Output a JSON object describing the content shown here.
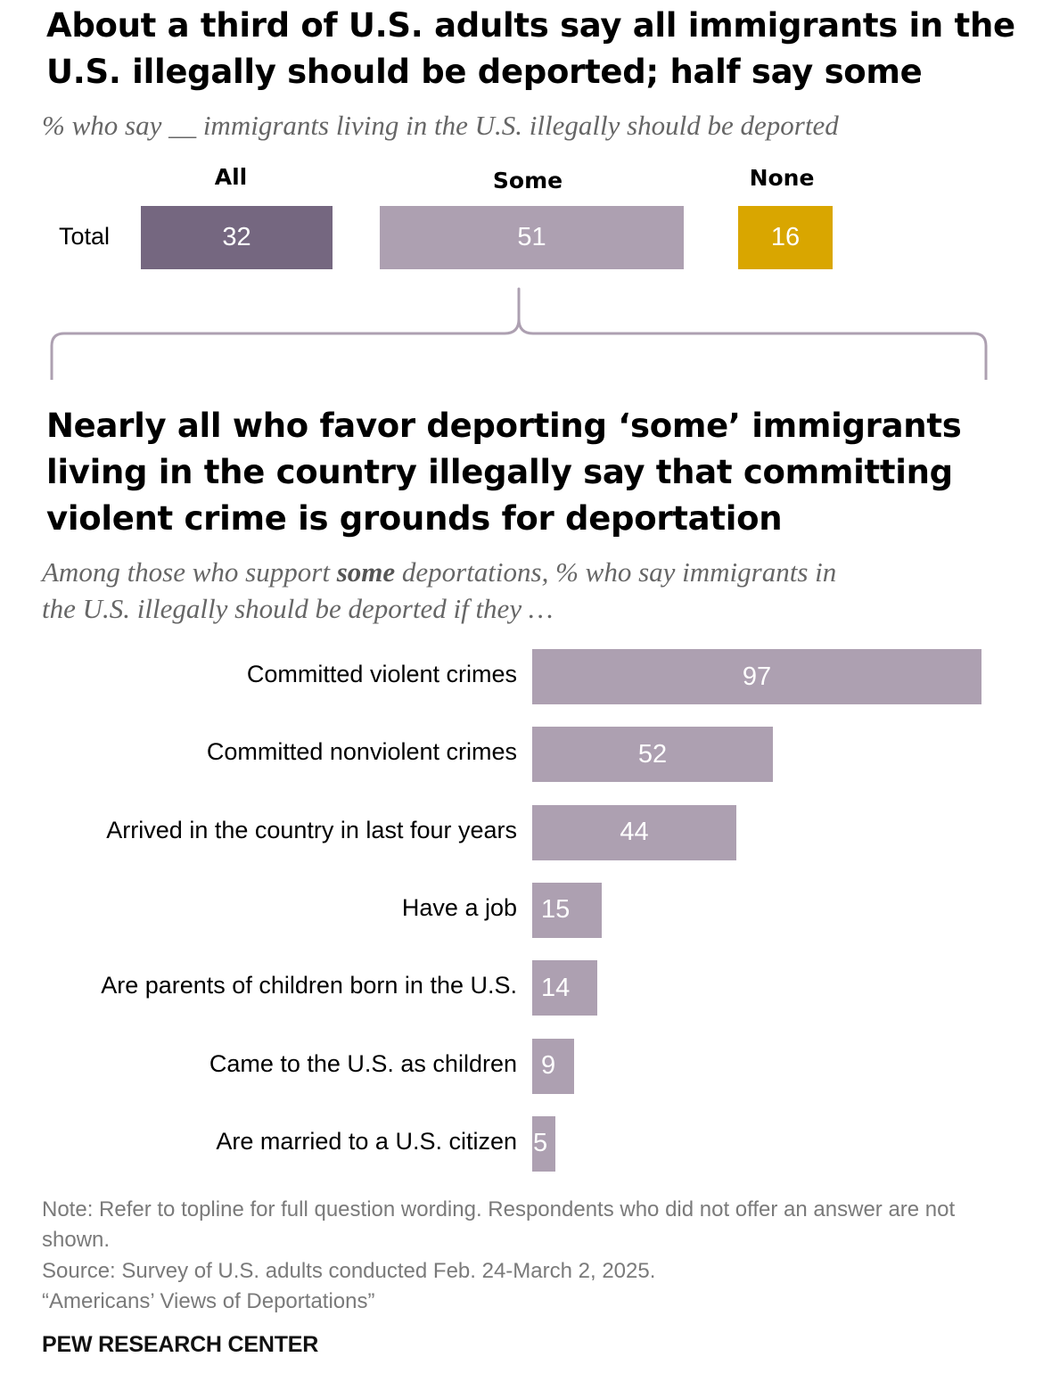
{
  "title": "About a third of U.S. adults say all immigrants in the U.S. illegally should be deported; half say some",
  "title_lines": [
    "About a third of U.S. adults say all immigrants in the",
    "U.S. illegally should be deported; half say some"
  ],
  "subtitle": "% who say __ immigrants living in the U.S. illegally should be deported",
  "colors": {
    "all": "#756780",
    "some": "#ada0b1",
    "none": "#d9a600",
    "bracket": "#ada0b1"
  },
  "chart_data": [
    {
      "type": "bar",
      "orientation": "horizontal-stacked-columns",
      "title": "About a third of U.S. adults say all immigrants in the U.S. illegally should be deported; half say some",
      "subtitle": "% who say __ immigrants living in the U.S. illegally should be deported",
      "row_label": "Total",
      "categories": [
        "All",
        "Some",
        "None"
      ],
      "values": [
        32,
        51,
        16
      ]
    },
    {
      "type": "bar",
      "orientation": "horizontal",
      "title": "Nearly all who favor deporting ‘some’ immigrants living in the country illegally say that committing violent crime is grounds for deportation",
      "subtitle": "Among those who support some deportations, % who say immigrants in the U.S. illegally should be deported if they …",
      "categories": [
        "Committed violent crimes",
        "Committed nonviolent crimes",
        "Arrived in the country in last four years",
        "Have a job",
        "Are parents of children born in the U.S.",
        "Came to the U.S. as children",
        "Are married to a U.S. citizen"
      ],
      "values": [
        97,
        52,
        44,
        15,
        14,
        9,
        5
      ],
      "xlim": [
        0,
        100
      ]
    }
  ],
  "top_chart": {
    "row_label": "Total",
    "headers": [
      "All",
      "Some",
      "None"
    ],
    "values": [
      "32",
      "51",
      "16"
    ]
  },
  "second_title_lines": [
    "Nearly all who favor deporting ‘some’ immigrants",
    "living in the country illegally say that committing",
    "violent crime is grounds for deportation"
  ],
  "second_subtitle": {
    "line1_pre": "Among those who support ",
    "line1_bold": "some",
    "line1_post": " deportations, % who say immigrants in",
    "line2": "the U.S. illegally should be deported if they …"
  },
  "notes": {
    "note": "Note: Refer to topline for full question wording. Respondents who did not offer an answer are not shown.",
    "source": "Source: Survey of U.S. adults conducted Feb. 24-March 2, 2025.",
    "report": "“Americans’ Views of Deportations”",
    "brand": "PEW RESEARCH CENTER"
  }
}
